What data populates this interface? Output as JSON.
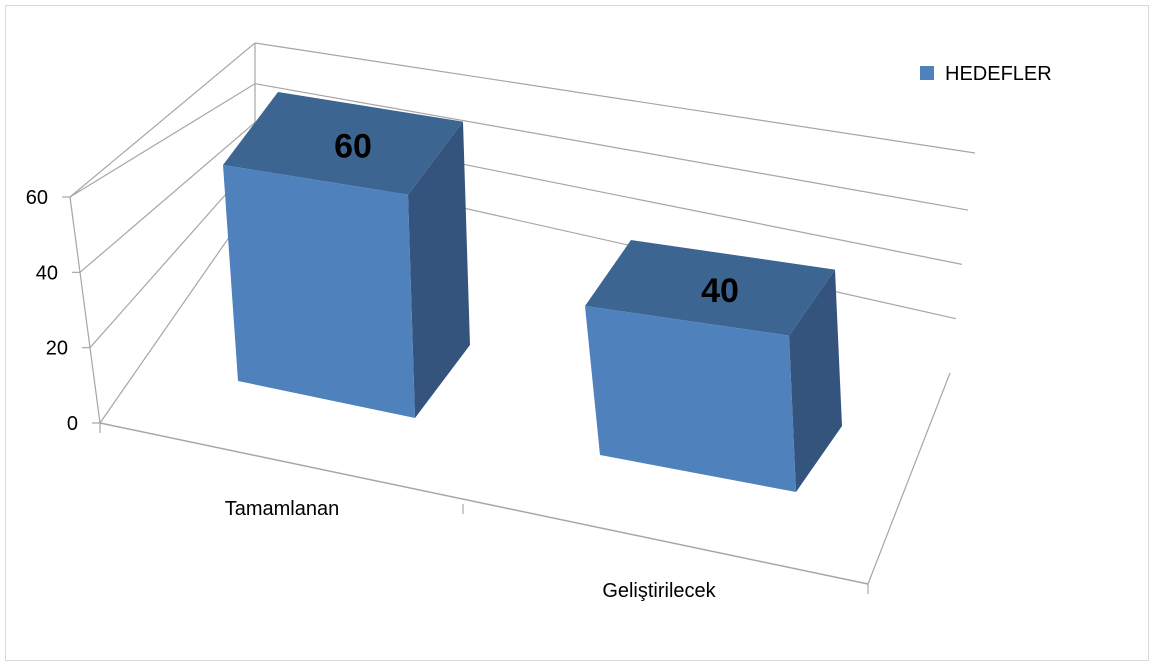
{
  "chart_data": {
    "type": "bar",
    "categories": [
      "Tamamlanan",
      "Geliştirilecek"
    ],
    "series": [
      {
        "name": "HEDEFLER",
        "values": [
          60,
          40
        ],
        "color": "#4f81bd"
      }
    ],
    "ylim": [
      0,
      60
    ],
    "yticks": [
      0,
      20,
      40,
      60
    ],
    "ytick_labels": [
      "0",
      "20",
      "40",
      "60"
    ],
    "data_labels": [
      "60",
      "40"
    ],
    "legend_position": "top-right",
    "grid": true,
    "style": "3d-bar"
  }
}
